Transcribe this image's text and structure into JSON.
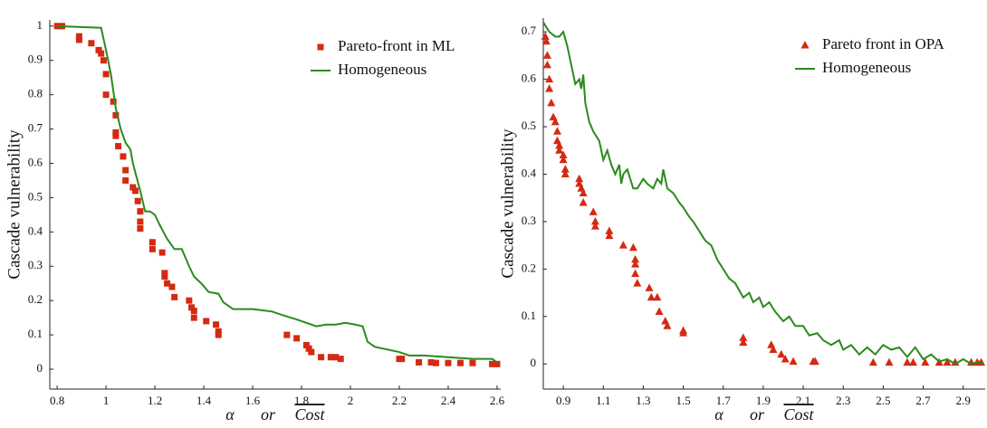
{
  "chart_data": [
    {
      "type": "scatter",
      "xlabel": [
        "α",
        "or",
        "Cost"
      ],
      "ylabel": "Cascade vulnerability",
      "xlim": [
        0.77,
        2.615
      ],
      "ylim": [
        -0.058,
        1.018
      ],
      "xticks": [
        0.8,
        1,
        1.2,
        1.4,
        1.6,
        1.8,
        2,
        2.2,
        2.4,
        2.6
      ],
      "yticks": [
        0,
        0.1,
        0.2,
        0.3,
        0.4,
        0.5,
        0.6,
        0.7,
        0.8,
        0.9,
        1
      ],
      "legend": "upper right",
      "series": [
        {
          "name": "Pareto-front in ML",
          "color": "#d42a12",
          "mode": "markers",
          "marker": "square",
          "x": [
            0.8,
            0.82,
            0.89,
            0.89,
            0.94,
            0.97,
            0.98,
            0.99,
            1.0,
            1.0,
            1.03,
            1.04,
            1.04,
            1.04,
            1.05,
            1.07,
            1.08,
            1.08,
            1.11,
            1.12,
            1.13,
            1.14,
            1.14,
            1.14,
            1.19,
            1.19,
            1.23,
            1.24,
            1.24,
            1.25,
            1.27,
            1.28,
            1.34,
            1.35,
            1.36,
            1.36,
            1.41,
            1.45,
            1.46,
            1.46,
            1.74,
            1.78,
            1.82,
            1.83,
            1.84,
            1.88,
            1.92,
            1.94,
            1.96,
            2.2,
            2.21,
            2.28,
            2.33,
            2.35,
            2.4,
            2.45,
            2.5,
            2.58,
            2.6
          ],
          "values": [
            1.0,
            1.0,
            0.97,
            0.96,
            0.95,
            0.93,
            0.92,
            0.9,
            0.86,
            0.8,
            0.78,
            0.74,
            0.69,
            0.68,
            0.65,
            0.62,
            0.58,
            0.55,
            0.53,
            0.52,
            0.49,
            0.46,
            0.43,
            0.41,
            0.37,
            0.35,
            0.34,
            0.28,
            0.27,
            0.25,
            0.24,
            0.21,
            0.2,
            0.18,
            0.17,
            0.15,
            0.14,
            0.13,
            0.11,
            0.1,
            0.1,
            0.09,
            0.07,
            0.06,
            0.05,
            0.035,
            0.035,
            0.035,
            0.03,
            0.03,
            0.03,
            0.02,
            0.02,
            0.018,
            0.018,
            0.018,
            0.018,
            0.015,
            0.015
          ]
        },
        {
          "name": "Homogeneous",
          "color": "#2a8a1c",
          "mode": "lines",
          "x": [
            0.8,
            0.98,
            1.0,
            1.02,
            1.04,
            1.06,
            1.08,
            1.1,
            1.11,
            1.14,
            1.16,
            1.18,
            1.2,
            1.22,
            1.25,
            1.28,
            1.31,
            1.34,
            1.36,
            1.39,
            1.42,
            1.46,
            1.48,
            1.52,
            1.6,
            1.68,
            1.72,
            1.78,
            1.82,
            1.86,
            1.9,
            1.94,
            1.98,
            2.02,
            2.05,
            2.07,
            2.1,
            2.2,
            2.24,
            2.3,
            2.4,
            2.5,
            2.58,
            2.6
          ],
          "values": [
            1.0,
            0.995,
            0.93,
            0.86,
            0.76,
            0.7,
            0.66,
            0.64,
            0.6,
            0.52,
            0.46,
            0.46,
            0.45,
            0.42,
            0.38,
            0.35,
            0.35,
            0.3,
            0.27,
            0.25,
            0.225,
            0.22,
            0.195,
            0.175,
            0.175,
            0.168,
            0.158,
            0.145,
            0.135,
            0.125,
            0.13,
            0.13,
            0.135,
            0.13,
            0.125,
            0.08,
            0.065,
            0.05,
            0.04,
            0.04,
            0.035,
            0.03,
            0.03,
            0.02
          ]
        }
      ]
    },
    {
      "type": "scatter",
      "xlabel": [
        "α",
        "or",
        "Cost"
      ],
      "ylabel": "Cascade vulnerability",
      "xlim": [
        0.8,
        3.01
      ],
      "ylim": [
        -0.053,
        0.729
      ],
      "xticks": [
        0.9,
        1.1,
        1.3,
        1.5,
        1.7,
        1.9,
        2.1,
        2.3,
        2.5,
        2.7,
        2.9
      ],
      "yticks": [
        0,
        0.1,
        0.2,
        0.3,
        0.4,
        0.5,
        0.6,
        0.7
      ],
      "legend": "upper right",
      "series": [
        {
          "name": "Pareto front in OPA",
          "color": "#d42a12",
          "mode": "markers",
          "marker": "triangle",
          "x": [
            0.81,
            0.815,
            0.82,
            0.82,
            0.83,
            0.83,
            0.84,
            0.85,
            0.86,
            0.87,
            0.87,
            0.88,
            0.88,
            0.9,
            0.9,
            0.91,
            0.91,
            0.98,
            0.98,
            0.99,
            1.0,
            1.0,
            1.05,
            1.06,
            1.06,
            1.13,
            1.13,
            1.2,
            1.25,
            1.26,
            1.26,
            1.26,
            1.27,
            1.33,
            1.34,
            1.37,
            1.38,
            1.41,
            1.42,
            1.5,
            1.5,
            1.8,
            1.8,
            1.94,
            1.95,
            1.99,
            2.01,
            2.05,
            2.15,
            2.16,
            2.45,
            2.53,
            2.62,
            2.65,
            2.71,
            2.78,
            2.82,
            2.86,
            2.94,
            2.97,
            2.99
          ],
          "values": [
            0.69,
            0.68,
            0.65,
            0.63,
            0.6,
            0.58,
            0.55,
            0.52,
            0.51,
            0.49,
            0.47,
            0.46,
            0.45,
            0.44,
            0.43,
            0.41,
            0.4,
            0.39,
            0.38,
            0.37,
            0.36,
            0.34,
            0.32,
            0.3,
            0.29,
            0.28,
            0.27,
            0.25,
            0.245,
            0.22,
            0.21,
            0.19,
            0.17,
            0.16,
            0.14,
            0.14,
            0.11,
            0.09,
            0.08,
            0.07,
            0.065,
            0.055,
            0.045,
            0.04,
            0.03,
            0.02,
            0.01,
            0.005,
            0.005,
            0.005,
            0.003,
            0.003,
            0.003,
            0.003,
            0.003,
            0.003,
            0.003,
            0.003,
            0.003,
            0.003,
            0.003
          ]
        },
        {
          "name": "Homogeneous",
          "color": "#2a8a1c",
          "mode": "lines",
          "x": [
            0.8,
            0.83,
            0.86,
            0.88,
            0.9,
            0.92,
            0.94,
            0.96,
            0.98,
            0.99,
            1.0,
            1.01,
            1.03,
            1.05,
            1.08,
            1.1,
            1.12,
            1.14,
            1.16,
            1.18,
            1.19,
            1.2,
            1.22,
            1.25,
            1.27,
            1.3,
            1.32,
            1.35,
            1.37,
            1.39,
            1.4,
            1.42,
            1.45,
            1.48,
            1.5,
            1.53,
            1.55,
            1.58,
            1.61,
            1.64,
            1.67,
            1.7,
            1.73,
            1.76,
            1.8,
            1.83,
            1.85,
            1.88,
            1.9,
            1.93,
            1.96,
            2.0,
            2.03,
            2.06,
            2.1,
            2.13,
            2.17,
            2.2,
            2.24,
            2.28,
            2.3,
            2.34,
            2.38,
            2.42,
            2.46,
            2.5,
            2.54,
            2.58,
            2.62,
            2.66,
            2.7,
            2.74,
            2.78,
            2.82,
            2.86,
            2.9,
            2.94,
            2.98,
            3.0
          ],
          "values": [
            0.72,
            0.7,
            0.69,
            0.69,
            0.7,
            0.67,
            0.63,
            0.59,
            0.6,
            0.58,
            0.61,
            0.55,
            0.51,
            0.49,
            0.47,
            0.43,
            0.45,
            0.42,
            0.4,
            0.42,
            0.38,
            0.4,
            0.41,
            0.37,
            0.37,
            0.39,
            0.38,
            0.37,
            0.39,
            0.38,
            0.41,
            0.37,
            0.36,
            0.34,
            0.33,
            0.31,
            0.3,
            0.28,
            0.26,
            0.25,
            0.22,
            0.2,
            0.18,
            0.17,
            0.14,
            0.15,
            0.13,
            0.14,
            0.12,
            0.13,
            0.11,
            0.09,
            0.1,
            0.08,
            0.08,
            0.06,
            0.065,
            0.05,
            0.04,
            0.05,
            0.03,
            0.04,
            0.02,
            0.035,
            0.02,
            0.04,
            0.03,
            0.035,
            0.015,
            0.035,
            0.01,
            0.02,
            0.005,
            0.01,
            0.0,
            0.01,
            0.0,
            0.005,
            0.0
          ]
        }
      ]
    }
  ]
}
